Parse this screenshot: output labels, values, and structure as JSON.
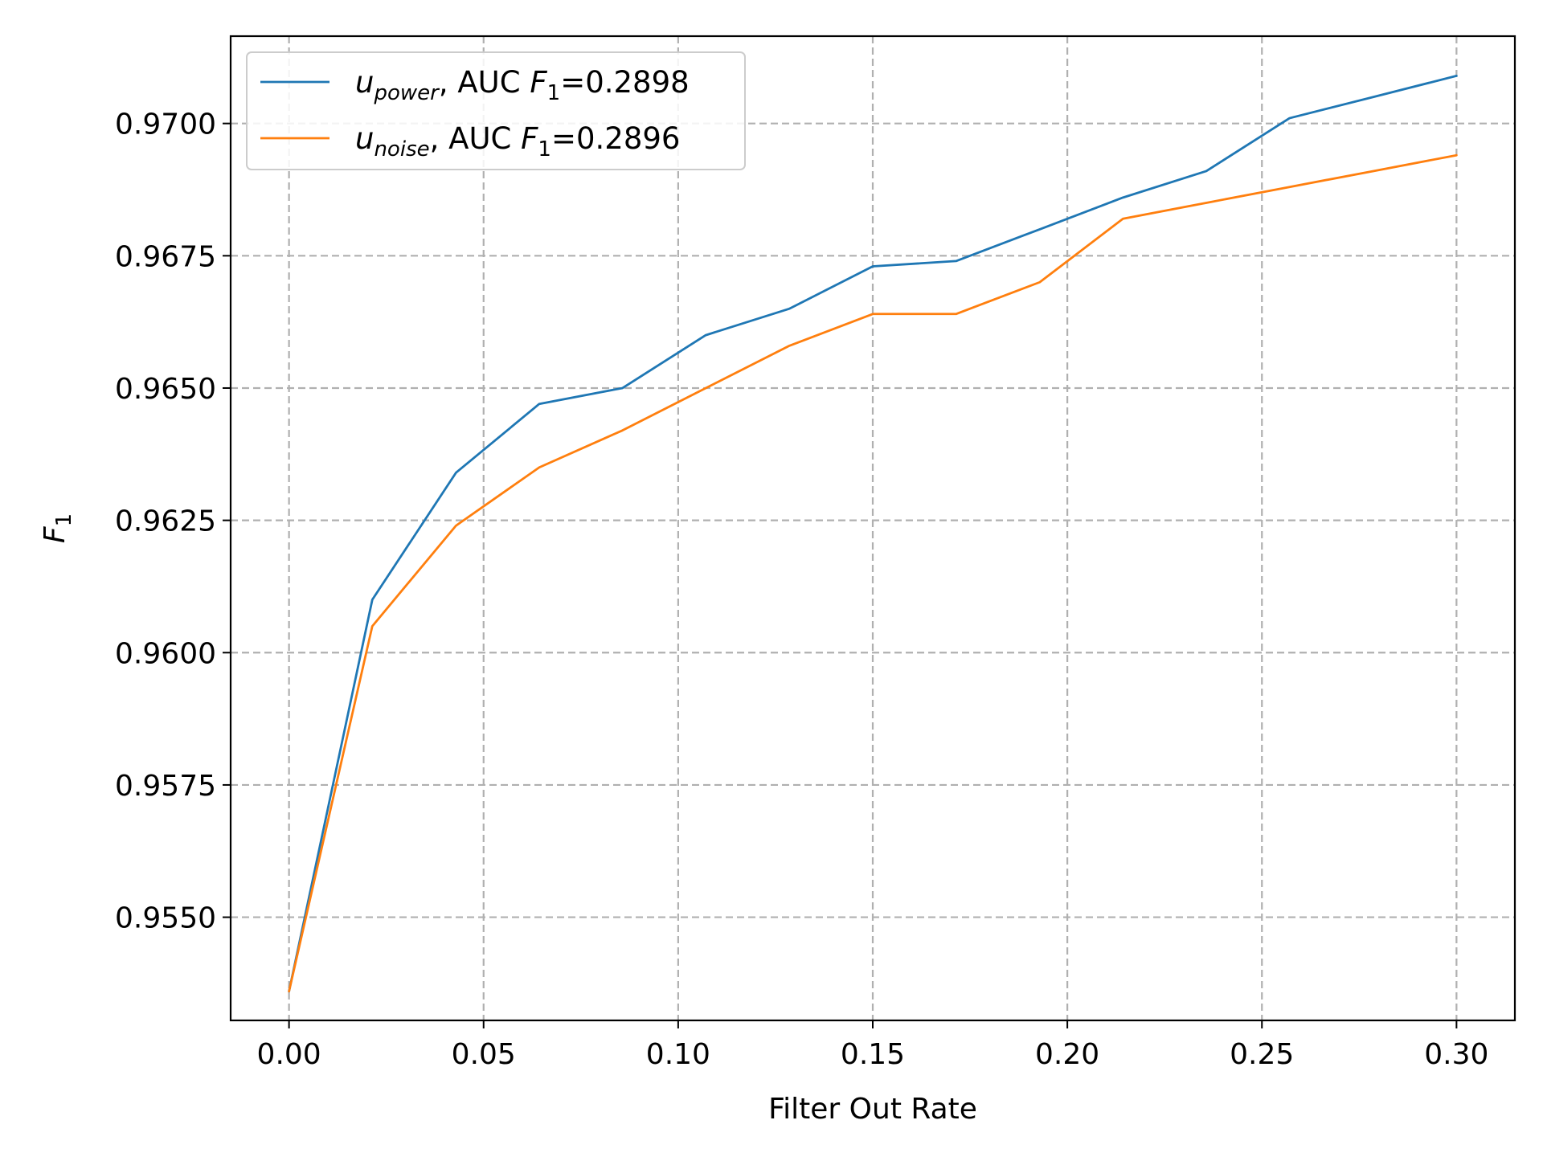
{
  "chart_data": {
    "type": "line",
    "xlabel": "Filter Out Rate",
    "ylabel": "F1",
    "xlim": [
      -0.015,
      0.315
    ],
    "ylim": [
      0.95305,
      0.97165
    ],
    "xticks": [
      "0.00",
      "0.05",
      "0.10",
      "0.15",
      "0.20",
      "0.25",
      "0.30"
    ],
    "yticks": [
      "0.9550",
      "0.9575",
      "0.9600",
      "0.9625",
      "0.9650",
      "0.9675",
      "0.9700"
    ],
    "grid": true,
    "legend_position": "top-left",
    "x": [
      0.0,
      0.0214,
      0.0429,
      0.0643,
      0.0857,
      0.1071,
      0.1286,
      0.15,
      0.1714,
      0.1929,
      0.2143,
      0.2357,
      0.2571,
      0.2786,
      0.3
    ],
    "series": [
      {
        "name": "u_power, AUC F1=0.2898",
        "legend_var": "u",
        "legend_sub": "power",
        "legend_rest": ", AUC ",
        "legend_f": "F",
        "legend_fsub": "1",
        "legend_val": "=0.2898",
        "color": "#1f77b4",
        "values": [
          0.9536,
          0.961,
          0.9634,
          0.9647,
          0.965,
          0.966,
          0.9665,
          0.9673,
          0.9674,
          0.968,
          0.9686,
          0.9691,
          0.9701,
          0.9705,
          0.9709
        ]
      },
      {
        "name": "u_noise, AUC F1=0.2896",
        "legend_var": "u",
        "legend_sub": "noise",
        "legend_rest": ", AUC ",
        "legend_f": "F",
        "legend_fsub": "1",
        "legend_val": "=0.2896",
        "color": "#ff7f0e",
        "values": [
          0.9536,
          0.9605,
          0.9624,
          0.9635,
          0.9642,
          0.965,
          0.9658,
          0.9664,
          0.9664,
          0.967,
          0.9682,
          0.9685,
          0.9688,
          0.9691,
          0.9694
        ]
      }
    ]
  }
}
